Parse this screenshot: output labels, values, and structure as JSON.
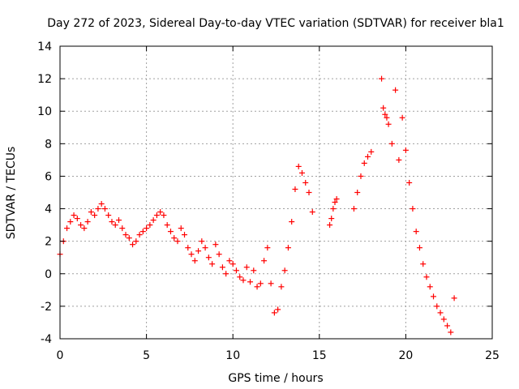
{
  "chart_data": {
    "type": "scatter",
    "title": "Day 272 of 2023, Sidereal Day-to-day VTEC variation (SDTVAR) for receiver bla1",
    "xlabel": "GPS time / hours",
    "ylabel": "SDTVAR / TECUs",
    "xlim": [
      0,
      25
    ],
    "ylim": [
      -4,
      14
    ],
    "xticks": [
      0,
      5,
      10,
      15,
      20,
      25
    ],
    "yticks": [
      -4,
      -2,
      0,
      2,
      4,
      6,
      8,
      10,
      12,
      14
    ],
    "xtick_labels": [
      "0",
      "5",
      "10",
      "15",
      "20",
      "25"
    ],
    "ytick_labels": [
      "-4",
      "-2",
      "0",
      "2",
      "4",
      "6",
      "8",
      "10",
      "12",
      "14"
    ],
    "grid": true,
    "marker": "+",
    "series": [
      {
        "name": "bla1 SDTVAR",
        "color": "#ff0000",
        "x": [
          0.0,
          0.2,
          0.4,
          0.6,
          0.8,
          1.0,
          1.2,
          1.4,
          1.6,
          1.8,
          2.0,
          2.2,
          2.4,
          2.6,
          2.8,
          3.0,
          3.2,
          3.4,
          3.6,
          3.8,
          4.0,
          4.2,
          4.4,
          4.6,
          4.8,
          5.0,
          5.2,
          5.4,
          5.6,
          5.8,
          6.0,
          6.2,
          6.4,
          6.6,
          6.8,
          7.0,
          7.2,
          7.4,
          7.6,
          7.8,
          8.0,
          8.2,
          8.4,
          8.6,
          8.8,
          9.0,
          9.2,
          9.4,
          9.6,
          9.8,
          10.0,
          10.2,
          10.4,
          10.6,
          10.8,
          11.0,
          11.2,
          11.4,
          11.6,
          11.8,
          12.0,
          12.2,
          12.4,
          12.6,
          12.8,
          13.0,
          13.2,
          13.4,
          13.6,
          13.8,
          14.0,
          14.2,
          14.4,
          14.6,
          15.6,
          15.7,
          15.8,
          15.9,
          16.0,
          17.0,
          17.2,
          17.4,
          17.6,
          17.8,
          18.0,
          18.6,
          18.7,
          18.8,
          18.9,
          19.0,
          19.2,
          19.4,
          19.6,
          19.8,
          20.0,
          20.2,
          20.4,
          20.6,
          20.8,
          21.0,
          21.2,
          21.4,
          21.6,
          21.8,
          22.0,
          22.2,
          22.4,
          22.6,
          22.8
        ],
        "values": [
          1.2,
          2.0,
          2.8,
          3.2,
          3.6,
          3.4,
          3.0,
          2.8,
          3.2,
          3.8,
          3.6,
          4.0,
          4.3,
          4.0,
          3.6,
          3.2,
          3.0,
          3.3,
          2.8,
          2.4,
          2.2,
          1.8,
          2.0,
          2.4,
          2.6,
          2.8,
          3.0,
          3.3,
          3.6,
          3.8,
          3.6,
          3.0,
          2.6,
          2.2,
          2.0,
          2.8,
          2.4,
          1.6,
          1.2,
          0.8,
          1.4,
          2.0,
          1.6,
          1.0,
          0.6,
          1.8,
          1.2,
          0.4,
          0.0,
          0.8,
          0.6,
          0.2,
          -0.2,
          -0.4,
          0.4,
          -0.5,
          0.2,
          -0.8,
          -0.6,
          0.8,
          1.6,
          -0.6,
          -2.4,
          -2.2,
          -0.8,
          0.2,
          1.6,
          3.2,
          5.2,
          6.6,
          6.2,
          5.6,
          5.0,
          3.8,
          3.0,
          3.4,
          4.0,
          4.4,
          4.6,
          4.0,
          5.0,
          6.0,
          6.8,
          7.2,
          7.5,
          12.0,
          10.2,
          9.8,
          9.6,
          9.2,
          8.0,
          11.3,
          7.0,
          9.6,
          7.6,
          5.6,
          4.0,
          2.6,
          1.6,
          0.6,
          -0.2,
          -0.8,
          -1.4,
          -2.0,
          -2.4,
          -2.8,
          -3.2,
          -3.6,
          -1.5
        ]
      }
    ]
  }
}
